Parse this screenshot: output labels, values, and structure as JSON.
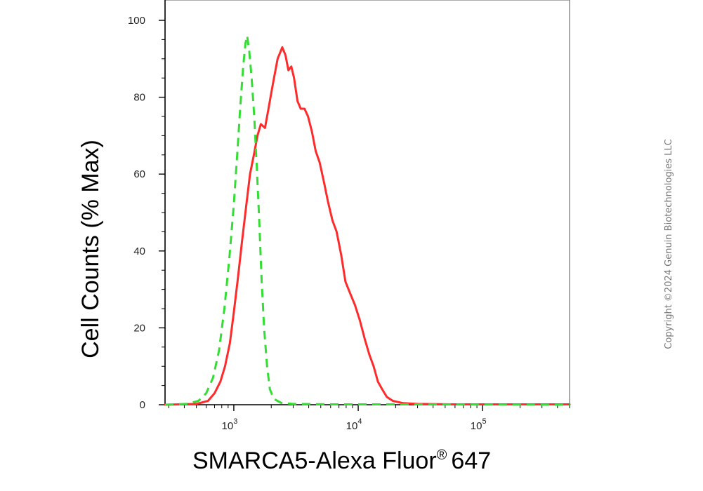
{
  "chart_data": {
    "type": "line",
    "xlabel": "SMARCA5-Alexa Fluor",
    "xlabel_superscript": "®",
    "xlabel_suffix": "647",
    "ylabel": "Cell Counts (% Max)",
    "x_scale": "log",
    "xlim": [
      280,
      500000
    ],
    "ylim": [
      0,
      100
    ],
    "y_ticks": [
      0,
      20,
      40,
      60,
      80,
      100
    ],
    "x_ticks": [
      {
        "value": 1000,
        "base": "10",
        "exp": "3"
      },
      {
        "value": 10000,
        "base": "10",
        "exp": "4"
      },
      {
        "value": 100000,
        "base": "10",
        "exp": "5"
      }
    ],
    "grid": false,
    "series": [
      {
        "color": "#ff2a2a",
        "style": "solid",
        "points": [
          [
            280,
            0
          ],
          [
            500,
            0.2
          ],
          [
            620,
            1
          ],
          [
            700,
            3
          ],
          [
            780,
            6
          ],
          [
            850,
            10
          ],
          [
            930,
            16
          ],
          [
            1000,
            24
          ],
          [
            1080,
            33
          ],
          [
            1160,
            42
          ],
          [
            1250,
            51
          ],
          [
            1350,
            60
          ],
          [
            1450,
            65
          ],
          [
            1550,
            70
          ],
          [
            1650,
            73
          ],
          [
            1780,
            72
          ],
          [
            1900,
            77
          ],
          [
            2050,
            83
          ],
          [
            2250,
            90
          ],
          [
            2450,
            93
          ],
          [
            2600,
            91
          ],
          [
            2750,
            87
          ],
          [
            2900,
            88
          ],
          [
            3050,
            85
          ],
          [
            3250,
            79
          ],
          [
            3450,
            77
          ],
          [
            3700,
            77
          ],
          [
            3950,
            75
          ],
          [
            4250,
            71
          ],
          [
            4550,
            66
          ],
          [
            4900,
            63
          ],
          [
            5300,
            58
          ],
          [
            5700,
            53
          ],
          [
            6200,
            48
          ],
          [
            6700,
            45
          ],
          [
            7300,
            39
          ],
          [
            7900,
            32
          ],
          [
            8600,
            29
          ],
          [
            9400,
            26
          ],
          [
            10300,
            22
          ],
          [
            11300,
            17
          ],
          [
            12300,
            13
          ],
          [
            13300,
            10
          ],
          [
            14400,
            6
          ],
          [
            15600,
            4
          ],
          [
            17000,
            2
          ],
          [
            19000,
            1
          ],
          [
            23000,
            0.4
          ],
          [
            30000,
            0.2
          ],
          [
            60000,
            0.1
          ],
          [
            200000,
            0.1
          ],
          [
            500000,
            0.1
          ]
        ]
      },
      {
        "color": "#33dd33",
        "style": "dashed",
        "points": [
          [
            280,
            0
          ],
          [
            420,
            0.2
          ],
          [
            520,
            1
          ],
          [
            600,
            3
          ],
          [
            680,
            7
          ],
          [
            760,
            14
          ],
          [
            840,
            25
          ],
          [
            920,
            38
          ],
          [
            1000,
            52
          ],
          [
            1070,
            66
          ],
          [
            1130,
            78
          ],
          [
            1190,
            88
          ],
          [
            1240,
            94
          ],
          [
            1280,
            96
          ],
          [
            1330,
            92
          ],
          [
            1390,
            85
          ],
          [
            1460,
            75
          ],
          [
            1530,
            62
          ],
          [
            1600,
            48
          ],
          [
            1670,
            33
          ],
          [
            1750,
            20
          ],
          [
            1850,
            10
          ],
          [
            1950,
            4
          ],
          [
            2100,
            1.5
          ],
          [
            2400,
            0.5
          ],
          [
            3000,
            0.2
          ],
          [
            6000,
            0.1
          ],
          [
            20000,
            0.1
          ],
          [
            500000,
            0
          ]
        ]
      }
    ]
  },
  "watermark": "Copyright ©2024 Genuin Biotechnologies LLC"
}
